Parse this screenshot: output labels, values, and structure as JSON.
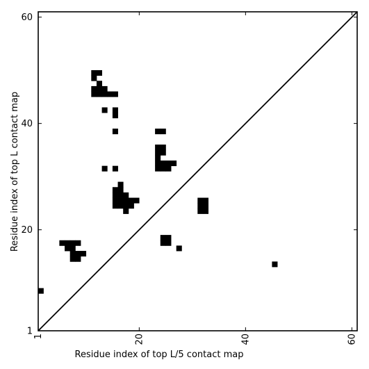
{
  "chart_data": {
    "type": "heatmap",
    "xlabel": "Residue index of top L/5 contact map",
    "ylabel": "Residue index of top L contact map",
    "xlim": [
      1,
      61
    ],
    "ylim": [
      1,
      61
    ],
    "x_ticks": [
      {
        "value": 1,
        "label": "1"
      },
      {
        "value": 20,
        "label": "20"
      },
      {
        "value": 40,
        "label": "40"
      },
      {
        "value": 60,
        "label": "60"
      }
    ],
    "y_ticks": [
      {
        "value": 1,
        "label": "1"
      },
      {
        "value": 20,
        "label": "20"
      },
      {
        "value": 40,
        "label": "40"
      },
      {
        "value": 60,
        "label": "60"
      }
    ],
    "grid": false,
    "diagonal": true,
    "cell_color": "#000000",
    "cells": [
      [
        11,
        49
      ],
      [
        12,
        49
      ],
      [
        11,
        48
      ],
      [
        12,
        47
      ],
      [
        11,
        46
      ],
      [
        12,
        46
      ],
      [
        13,
        46
      ],
      [
        11,
        45
      ],
      [
        12,
        45
      ],
      [
        13,
        45
      ],
      [
        14,
        45
      ],
      [
        15,
        45
      ],
      [
        13,
        42
      ],
      [
        15,
        42
      ],
      [
        15,
        41
      ],
      [
        15,
        38
      ],
      [
        13,
        31
      ],
      [
        15,
        31
      ],
      [
        16,
        28
      ],
      [
        15,
        27
      ],
      [
        16,
        27
      ],
      [
        15,
        26
      ],
      [
        16,
        26
      ],
      [
        17,
        26
      ],
      [
        15,
        25
      ],
      [
        16,
        25
      ],
      [
        17,
        25
      ],
      [
        18,
        25
      ],
      [
        19,
        25
      ],
      [
        15,
        24
      ],
      [
        16,
        24
      ],
      [
        17,
        24
      ],
      [
        18,
        24
      ],
      [
        17,
        23
      ],
      [
        23,
        38
      ],
      [
        24,
        38
      ],
      [
        23,
        35
      ],
      [
        24,
        35
      ],
      [
        23,
        34
      ],
      [
        24,
        34
      ],
      [
        23,
        33
      ],
      [
        23,
        32
      ],
      [
        24,
        32
      ],
      [
        25,
        32
      ],
      [
        26,
        32
      ],
      [
        23,
        31
      ],
      [
        24,
        31
      ],
      [
        25,
        31
      ],
      [
        31,
        25
      ],
      [
        32,
        25
      ],
      [
        31,
        24
      ],
      [
        32,
        24
      ],
      [
        31,
        23
      ],
      [
        32,
        23
      ],
      [
        24,
        18
      ],
      [
        25,
        18
      ],
      [
        24,
        17
      ],
      [
        25,
        17
      ],
      [
        27,
        16
      ],
      [
        5,
        17
      ],
      [
        6,
        17
      ],
      [
        7,
        17
      ],
      [
        8,
        17
      ],
      [
        6,
        16
      ],
      [
        7,
        16
      ],
      [
        7,
        15
      ],
      [
        8,
        15
      ],
      [
        9,
        15
      ],
      [
        7,
        14
      ],
      [
        8,
        14
      ],
      [
        45,
        13
      ],
      [
        1,
        8
      ]
    ]
  }
}
